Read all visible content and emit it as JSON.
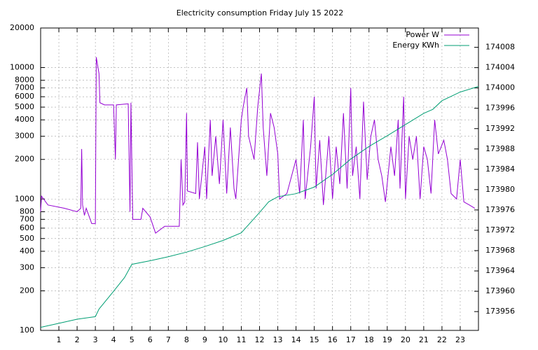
{
  "chart_data": {
    "type": "line",
    "title": "Electricity consumption Friday July 15 2022",
    "xlim": [
      0,
      24
    ],
    "xticks": [
      1,
      2,
      3,
      4,
      5,
      6,
      7,
      8,
      9,
      10,
      11,
      12,
      13,
      14,
      15,
      16,
      17,
      18,
      19,
      20,
      21,
      22,
      23
    ],
    "ylim": [
      100,
      20000
    ],
    "log_y": true,
    "yticks": [
      100,
      200,
      300,
      400,
      500,
      600,
      700,
      800,
      1000,
      2000,
      3000,
      4000,
      5000,
      6000,
      7000,
      8000,
      10000,
      20000
    ],
    "y2lim": [
      173952.3,
      174011.8
    ],
    "y2ticks": [
      173956,
      173960,
      173964,
      173968,
      173972,
      173976,
      173980,
      173984,
      173988,
      173992,
      173996,
      174000,
      174004,
      174008
    ],
    "grid": true,
    "legend": "top-right",
    "series": [
      {
        "name": "Power W",
        "color": "#9400d3",
        "x": [
          0,
          0.05,
          0.4,
          1.3,
          2.0,
          2.2,
          2.25,
          2.3,
          2.4,
          2.5,
          2.8,
          3.0,
          3.05,
          3.2,
          3.25,
          3.5,
          4.0,
          4.1,
          4.15,
          4.8,
          4.9,
          4.95,
          5.05,
          5.5,
          5.6,
          6.0,
          6.3,
          6.8,
          7.6,
          7.7,
          7.8,
          7.9,
          8.0,
          8.05,
          8.5,
          8.6,
          8.7,
          9.0,
          9.1,
          9.3,
          9.4,
          9.6,
          9.8,
          10.0,
          10.2,
          10.4,
          10.6,
          10.7,
          11.0,
          11.1,
          11.3,
          11.4,
          11.7,
          11.9,
          12.1,
          12.2,
          12.4,
          12.6,
          12.8,
          13.0,
          13.1,
          13.5,
          14.0,
          14.2,
          14.4,
          14.5,
          14.8,
          15.0,
          15.1,
          15.3,
          15.5,
          15.8,
          16.0,
          16.2,
          16.4,
          16.6,
          16.8,
          17.0,
          17.1,
          17.3,
          17.5,
          17.7,
          17.9,
          18.1,
          18.3,
          18.5,
          18.7,
          18.9,
          19.2,
          19.4,
          19.6,
          19.7,
          19.9,
          20.0,
          20.2,
          20.4,
          20.6,
          20.8,
          21.0,
          21.2,
          21.4,
          21.6,
          21.8,
          22.1,
          22.3,
          22.5,
          22.8,
          23.0,
          23.2,
          23.5,
          23.8
        ],
        "values": [
          800,
          1050,
          900,
          850,
          800,
          850,
          2400,
          900,
          750,
          850,
          650,
          650,
          12000,
          9000,
          5400,
          5200,
          5200,
          2000,
          5200,
          5300,
          800,
          5400,
          700,
          700,
          850,
          730,
          550,
          620,
          620,
          2000,
          900,
          950,
          4500,
          1150,
          1100,
          2700,
          1000,
          2500,
          1000,
          4000,
          1500,
          3000,
          1300,
          4000,
          1100,
          3500,
          1200,
          1000,
          4000,
          5000,
          7000,
          3000,
          2000,
          5000,
          9000,
          3500,
          1500,
          4500,
          3500,
          2200,
          1000,
          1100,
          2000,
          1100,
          4000,
          1000,
          2500,
          6000,
          1200,
          2800,
          900,
          3000,
          1000,
          2500,
          1300,
          4500,
          1200,
          7000,
          1500,
          2500,
          1000,
          5500,
          1400,
          3000,
          4000,
          2000,
          1500,
          950,
          2500,
          1500,
          4000,
          1200,
          6000,
          1000,
          3000,
          2000,
          3000,
          1000,
          2500,
          2000,
          1100,
          4000,
          2200,
          2800,
          2000,
          1100,
          1000,
          2000,
          950,
          900,
          850
        ]
      },
      {
        "name": "Energy KWh",
        "color": "#009e73",
        "axis": "y2",
        "x": [
          0,
          1,
          2,
          3,
          3.2,
          4,
          4.6,
          5,
          6,
          7,
          8,
          9,
          10,
          11,
          11.5,
          12,
          12.5,
          13,
          14,
          15,
          16,
          17,
          18,
          19,
          20,
          21,
          21.5,
          22,
          23,
          24
        ],
        "values": [
          173952.9,
          173953.7,
          173954.5,
          173955.0,
          173956.5,
          173960,
          173962.7,
          173965.3,
          173966,
          173966.8,
          173967.7,
          173968.8,
          173970,
          173971.5,
          173973.5,
          173975.5,
          173977.6,
          173978.6,
          173979.2,
          173980.5,
          173983,
          173986,
          173988.5,
          173990.6,
          173992.8,
          173995,
          173995.8,
          173997.5,
          173999.2,
          174000.3
        ]
      }
    ]
  }
}
